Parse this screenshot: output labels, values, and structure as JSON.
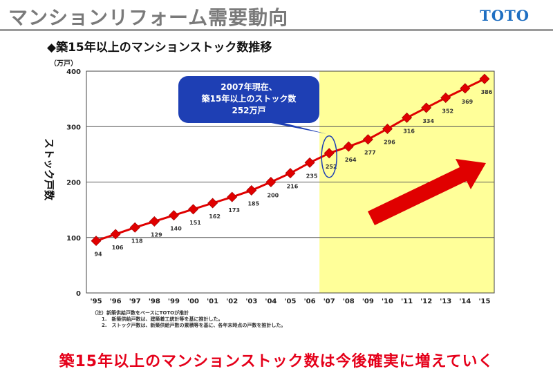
{
  "header": {
    "title": "マンションリフォーム需要動向",
    "brand": "TOTO"
  },
  "headline": "築15年以上のマンションストック数は今後確実に増えていく",
  "chart_data": {
    "type": "line",
    "title": "◆築15年以上のマンションストック数推移",
    "unit_label": "（万戸）",
    "ylabel": "ストック戸数",
    "ylim": [
      0,
      400
    ],
    "yticks": [
      0,
      100,
      200,
      300,
      400
    ],
    "grid": true,
    "categories": [
      "'95",
      "'96",
      "'97",
      "'98",
      "'99",
      "'00",
      "'01",
      "'02",
      "'03",
      "'04",
      "'05",
      "'06",
      "'07",
      "'08",
      "'09",
      "'10",
      "'11",
      "'12",
      "'13",
      "'14",
      "'15"
    ],
    "series": [
      {
        "values": [
          94,
          106,
          118,
          129,
          140,
          151,
          162,
          173,
          185,
          200,
          216,
          235,
          252,
          264,
          277,
          296,
          316,
          334,
          352,
          369,
          386
        ],
        "color": "#e00000"
      }
    ],
    "highlight": {
      "from": "'07",
      "to": "'15",
      "color": "#ffff99"
    },
    "callout": {
      "lines": [
        "2007年現在、",
        "築15年以上のストック数",
        "252万戸"
      ],
      "target": "'07",
      "color": "#1e3fb4"
    },
    "trend_arrow_color": "#e00000",
    "footnotes": [
      "（注）新築供給戸数をベースにTOTOが推計",
      "1.　新築供給戸数は、建築着工統計等を基に推計した。",
      "2.　ストック戸数は、新築供給戸数の累積等を基に、各年末時点の戸数を推計した。"
    ]
  }
}
